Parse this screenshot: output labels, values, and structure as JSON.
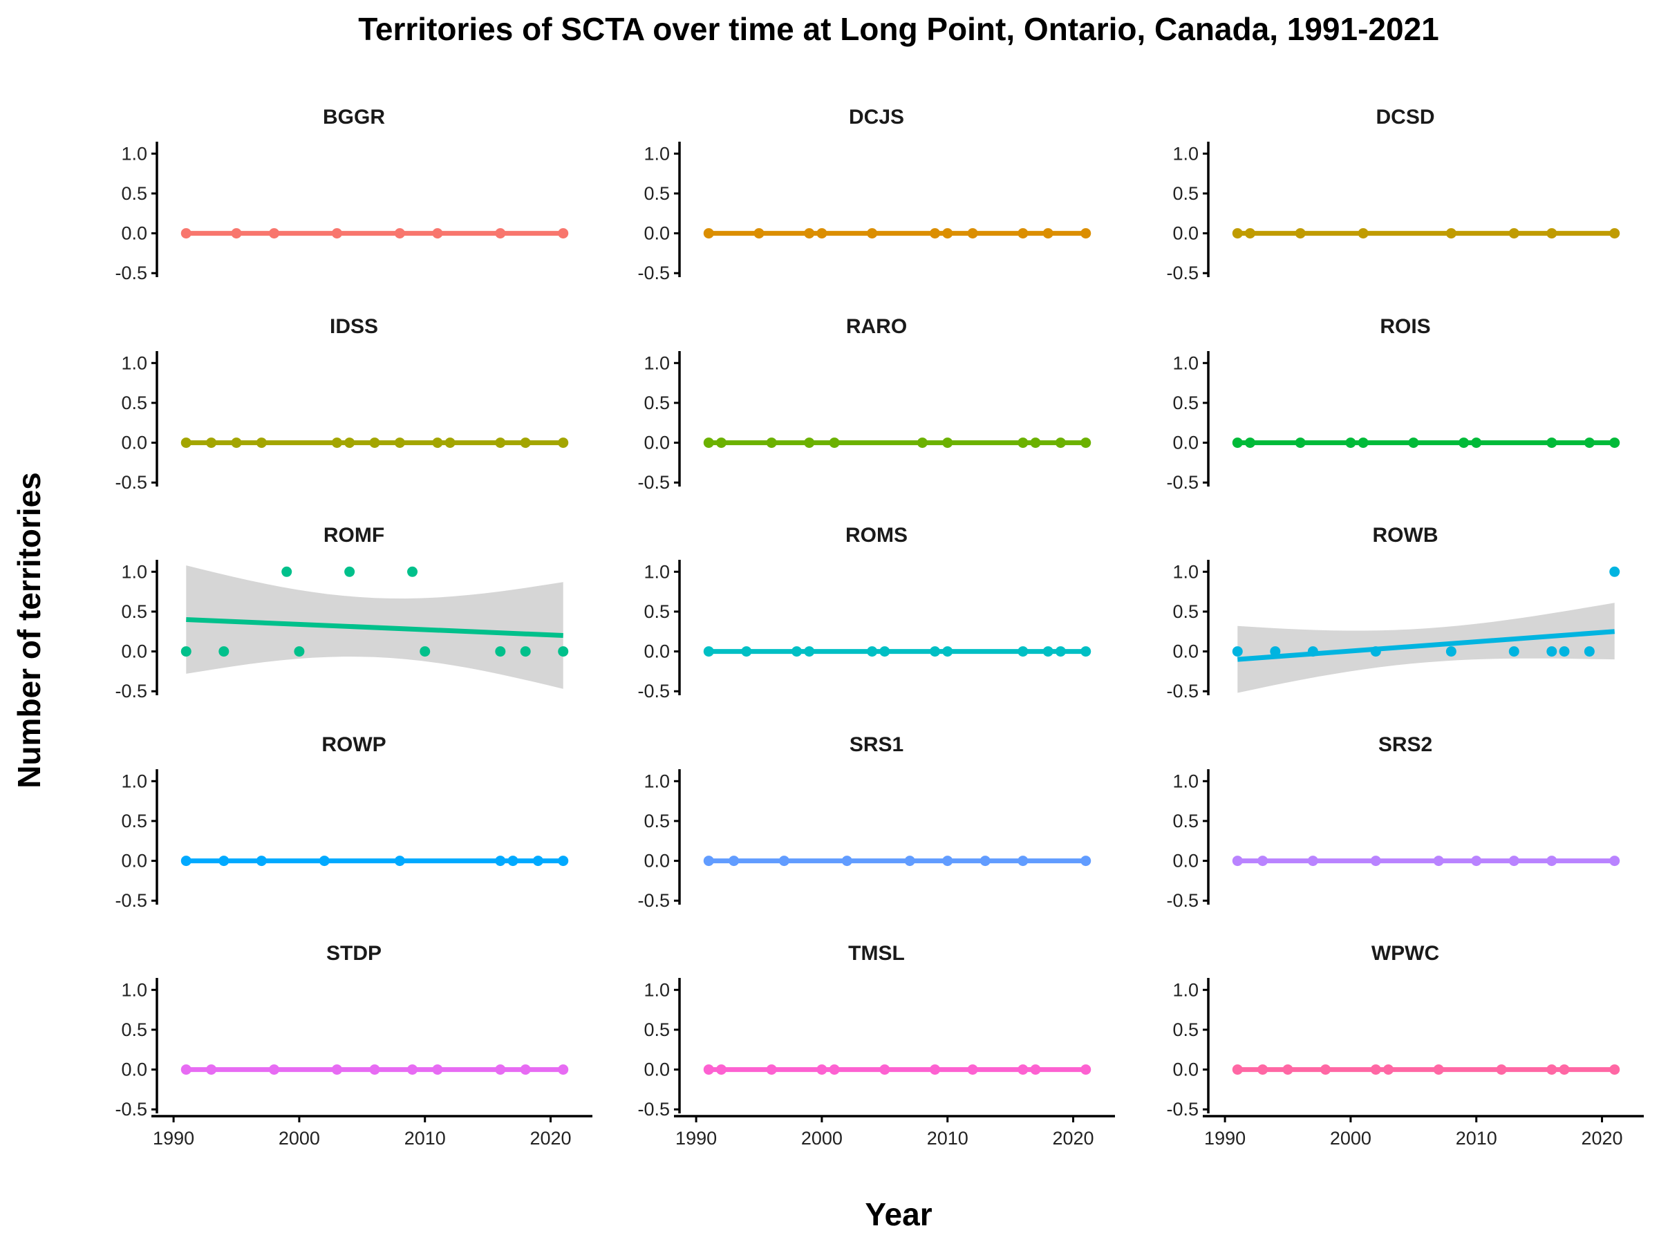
{
  "chart_data": {
    "type": "scatter",
    "title": "Territories of SCTA over time at Long Point, Ontario, Canada, 1991-2021",
    "xlabel": "Year",
    "ylabel": "Number of territories",
    "xlim": [
      1989.5,
      2022.5
    ],
    "ylim": [
      -0.55,
      1.15
    ],
    "x_ticks": [
      1990,
      2000,
      2010,
      2020
    ],
    "y_ticks": [
      -0.5,
      0.0,
      0.5,
      1.0
    ],
    "x_tick_labels": [
      "1990",
      "2000",
      "2010",
      "2020"
    ],
    "y_tick_labels": [
      "-0.5",
      "0.0",
      "0.5",
      "1.0"
    ],
    "grid": false,
    "legend": "none",
    "facets": [
      {
        "name": "BGGR",
        "color": "#F8766D",
        "x": [
          1991,
          1995,
          1998,
          2003,
          2008,
          2011,
          2016,
          2021
        ],
        "y": [
          0,
          0,
          0,
          0,
          0,
          0,
          0,
          0
        ],
        "trend": [
          0,
          0
        ],
        "ci": false
      },
      {
        "name": "DCJS",
        "color": "#DB8E00",
        "x": [
          1991,
          1995,
          1999,
          2000,
          2004,
          2009,
          2010,
          2012,
          2016,
          2018,
          2021
        ],
        "y": [
          0,
          0,
          0,
          0,
          0,
          0,
          0,
          0,
          0,
          0,
          0
        ],
        "trend": [
          0,
          0
        ],
        "ci": false
      },
      {
        "name": "DCSD",
        "color": "#C09B00",
        "x": [
          1991,
          1992,
          1996,
          2001,
          2008,
          2013,
          2016,
          2021
        ],
        "y": [
          0,
          0,
          0,
          0,
          0,
          0,
          0,
          0
        ],
        "trend": [
          0,
          0
        ],
        "ci": false
      },
      {
        "name": "IDSS",
        "color": "#A3A500",
        "x": [
          1991,
          1993,
          1995,
          1997,
          2003,
          2004,
          2006,
          2008,
          2011,
          2012,
          2016,
          2018,
          2021
        ],
        "y": [
          0,
          0,
          0,
          0,
          0,
          0,
          0,
          0,
          0,
          0,
          0,
          0,
          0
        ],
        "trend": [
          0,
          0
        ],
        "ci": false
      },
      {
        "name": "RARO",
        "color": "#6BB100",
        "x": [
          1991,
          1992,
          1996,
          1999,
          2001,
          2008,
          2010,
          2016,
          2017,
          2019,
          2021
        ],
        "y": [
          0,
          0,
          0,
          0,
          0,
          0,
          0,
          0,
          0,
          0,
          0
        ],
        "trend": [
          0,
          0
        ],
        "ci": false
      },
      {
        "name": "ROIS",
        "color": "#00BA38",
        "x": [
          1991,
          1992,
          1996,
          2000,
          2001,
          2005,
          2009,
          2010,
          2016,
          2019,
          2021
        ],
        "y": [
          0,
          0,
          0,
          0,
          0,
          0,
          0,
          0,
          0,
          0,
          0
        ],
        "trend": [
          0,
          0
        ],
        "ci": false
      },
      {
        "name": "ROMF",
        "color": "#00C08B",
        "x": [
          1991,
          1994,
          1999,
          2000,
          2004,
          2009,
          2010,
          2016,
          2018,
          2021
        ],
        "y": [
          0,
          0,
          1,
          0,
          1,
          1,
          0,
          0,
          0,
          0
        ],
        "trend": [
          0.4,
          0.2
        ],
        "ci": true,
        "ci_low": [
          -0.28,
          -0.47
        ],
        "ci_high": [
          1.08,
          0.87
        ]
      },
      {
        "name": "ROMS",
        "color": "#00BFC4",
        "x": [
          1991,
          1994,
          1998,
          1999,
          2004,
          2005,
          2009,
          2010,
          2016,
          2018,
          2019,
          2021
        ],
        "y": [
          0,
          0,
          0,
          0,
          0,
          0,
          0,
          0,
          0,
          0,
          0,
          0
        ],
        "trend": [
          0,
          0
        ],
        "ci": false
      },
      {
        "name": "ROWB",
        "color": "#00B4E0",
        "x": [
          1991,
          1994,
          1997,
          2002,
          2008,
          2013,
          2016,
          2017,
          2019,
          2021
        ],
        "y": [
          0,
          0,
          0,
          0,
          0,
          0,
          0,
          0,
          0,
          1
        ],
        "trend": [
          -0.1,
          0.25
        ],
        "ci": true,
        "ci_low": [
          -0.52,
          -0.1
        ],
        "ci_high": [
          0.32,
          0.61
        ]
      },
      {
        "name": "ROWP",
        "color": "#00A9FF",
        "x": [
          1991,
          1994,
          1997,
          2002,
          2008,
          2016,
          2017,
          2019,
          2021
        ],
        "y": [
          0,
          0,
          0,
          0,
          0,
          0,
          0,
          0,
          0
        ],
        "trend": [
          0,
          0
        ],
        "ci": false
      },
      {
        "name": "SRS1",
        "color": "#619CFF",
        "x": [
          1991,
          1993,
          1997,
          2002,
          2007,
          2010,
          2013,
          2016,
          2021
        ],
        "y": [
          0,
          0,
          0,
          0,
          0,
          0,
          0,
          0,
          0
        ],
        "trend": [
          0,
          0
        ],
        "ci": false
      },
      {
        "name": "SRS2",
        "color": "#B983FF",
        "x": [
          1991,
          1993,
          1997,
          2002,
          2007,
          2010,
          2013,
          2016,
          2021
        ],
        "y": [
          0,
          0,
          0,
          0,
          0,
          0,
          0,
          0,
          0
        ],
        "trend": [
          0,
          0
        ],
        "ci": false
      },
      {
        "name": "STDP",
        "color": "#E76BF3",
        "x": [
          1991,
          1993,
          1998,
          2003,
          2006,
          2009,
          2011,
          2016,
          2018,
          2021
        ],
        "y": [
          0,
          0,
          0,
          0,
          0,
          0,
          0,
          0,
          0,
          0
        ],
        "trend": [
          0,
          0
        ],
        "ci": false
      },
      {
        "name": "TMSL",
        "color": "#FD61D1",
        "x": [
          1991,
          1992,
          1996,
          2000,
          2001,
          2005,
          2009,
          2012,
          2016,
          2017,
          2021
        ],
        "y": [
          0,
          0,
          0,
          0,
          0,
          0,
          0,
          0,
          0,
          0,
          0
        ],
        "trend": [
          0,
          0
        ],
        "ci": false
      },
      {
        "name": "WPWC",
        "color": "#FF67A4",
        "x": [
          1991,
          1993,
          1995,
          1998,
          2002,
          2003,
          2007,
          2012,
          2016,
          2017,
          2021
        ],
        "y": [
          0,
          0,
          0,
          0,
          0,
          0,
          0,
          0,
          0,
          0,
          0
        ],
        "trend": [
          0,
          0
        ],
        "ci": false
      }
    ]
  }
}
